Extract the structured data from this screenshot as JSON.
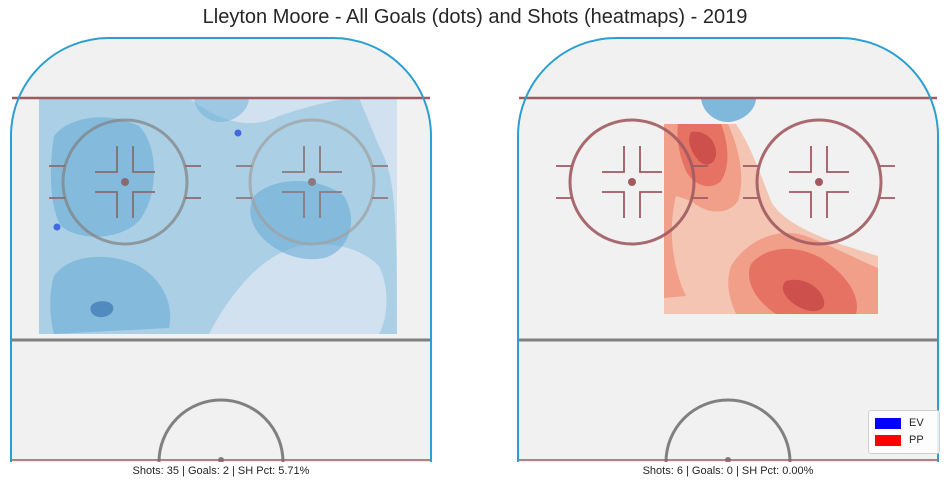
{
  "title": "Lleyton Moore - All Goals (dots) and Shots (heatmaps) - 2019",
  "chart_data": [
    {
      "type": "heatmap",
      "panel": "EV",
      "stats_text": "Shots: 35 | Goals: 2 | SH Pct: 5.71%",
      "shots": 35,
      "goals": 2,
      "sh_pct": 5.71,
      "heatmap_color": "#3182bd",
      "goal_points_color": "#4169e1",
      "goal_points": [
        {
          "x": 229,
          "y": 97
        },
        {
          "x": 48,
          "y": 191
        }
      ]
    },
    {
      "type": "heatmap",
      "panel": "PP",
      "stats_text": "Shots: 6 | Goals: 0 | SH Pct: 0.00%",
      "shots": 6,
      "goals": 0,
      "sh_pct": 0.0,
      "heatmap_color": "#de2d26",
      "goal_points_color": "#ff0000",
      "goal_points": []
    }
  ],
  "legend": {
    "placement": "lower-right",
    "entries": [
      {
        "label": "EV",
        "color": "#0000ff"
      },
      {
        "label": "PP",
        "color": "#ff0000"
      }
    ]
  },
  "colors": {
    "ice": "#f1f1f1",
    "boards": "#2a9fd0",
    "goal_line": "#a05a60",
    "center_line": "#808080",
    "faceoff": "#a05a60"
  }
}
